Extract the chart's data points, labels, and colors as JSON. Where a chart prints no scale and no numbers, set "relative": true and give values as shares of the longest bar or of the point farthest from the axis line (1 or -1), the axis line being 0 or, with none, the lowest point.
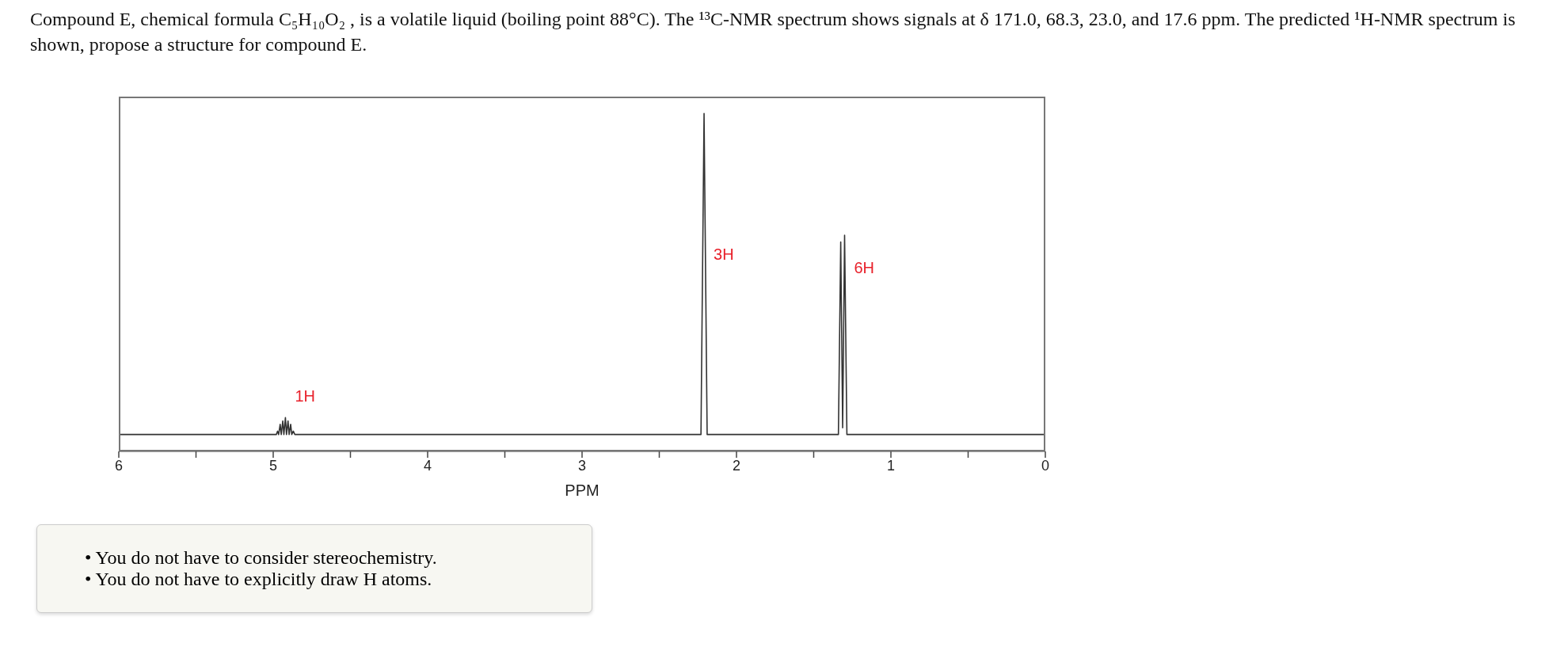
{
  "chart_data": {
    "type": "line",
    "title": "Compound E, chemical formula C₅H₁₀O₂ , is a volatile liquid (boiling point 88°C). The ¹³C-NMR spectrum shows signals at δ 171.0, 68.3, 23.0, and 17.6 ppm. The predicted ¹H-NMR spectrum is shown, propose a structure for compound E.",
    "xlabel": "PPM",
    "relative": true,
    "x": [
      6,
      4.98,
      4.972,
      4.965,
      4.955,
      4.948,
      4.938,
      4.931,
      4.921,
      4.914,
      4.904,
      4.897,
      4.887,
      4.88,
      4.87,
      4.86,
      2.23,
      2.21,
      2.19,
      1.34,
      1.325,
      1.3125,
      1.3,
      1.285,
      0
    ],
    "series": [
      {
        "color": "#333333",
        "values": [
          0.05,
          0.05,
          0.06,
          0.05,
          0.08,
          0.05,
          0.09,
          0.05,
          0.1,
          0.05,
          0.09,
          0.05,
          0.08,
          0.05,
          0.06,
          0.05,
          0.05,
          1,
          0.05,
          0.05,
          0.62,
          0.07,
          0.64,
          0.05,
          0.05
        ]
      }
    ],
    "xlim": [
      6,
      0
    ],
    "xticks": [
      6,
      {
        "value": 5.5,
        "label": null
      },
      5,
      {
        "value": 4.5,
        "label": null
      },
      4,
      {
        "value": 3.5,
        "label": null
      },
      3,
      {
        "value": 2.5,
        "label": null
      },
      2,
      {
        "value": 1.5,
        "label": null
      },
      1,
      {
        "value": 0.5,
        "label": null
      },
      0
    ],
    "marker": "none",
    "line_style": "solid",
    "annotations": [
      {
        "text": "1H",
        "x": 4.921,
        "y": 0.1
      },
      {
        "text": "3H",
        "x": 2.21,
        "y": 0.52
      },
      {
        "text": "6H",
        "x": 1.3,
        "y": 0.48
      },
      "• You do not have to consider stereochemistry.",
      "• You do not have to explicitly draw H atoms."
    ]
  }
}
